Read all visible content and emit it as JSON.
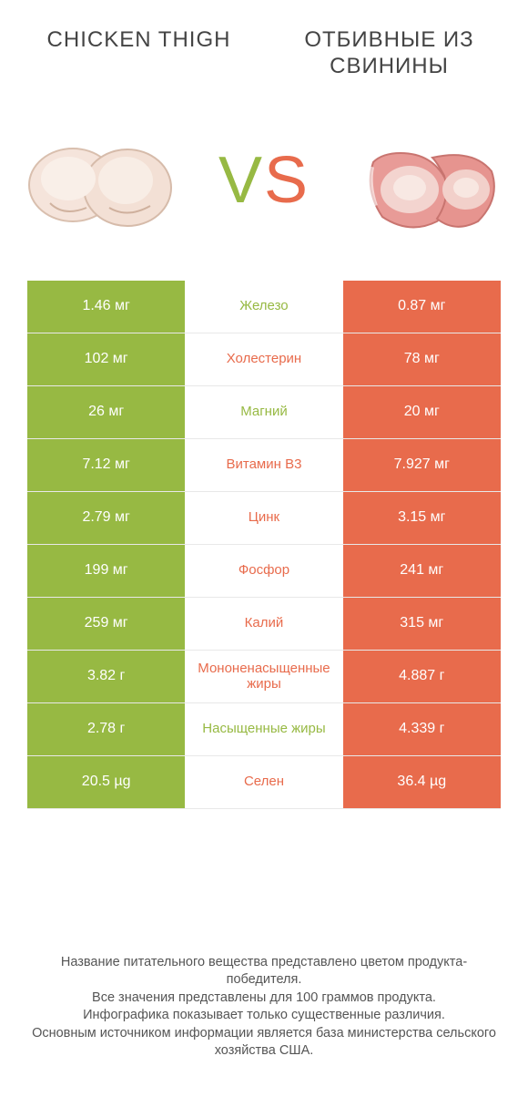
{
  "colors": {
    "green": "#97b943",
    "orange": "#e86b4c",
    "text": "#444444"
  },
  "header": {
    "left_title": "CHICKEN THIGH",
    "right_title": "ОТБИВНЫЕ ИЗ СВИНИНЫ"
  },
  "vs": {
    "v": "V",
    "s": "S"
  },
  "rows": [
    {
      "left": "1.46 мг",
      "label": "Железо",
      "right": "0.87 мг",
      "winner": "left"
    },
    {
      "left": "102 мг",
      "label": "Холестерин",
      "right": "78 мг",
      "winner": "right"
    },
    {
      "left": "26 мг",
      "label": "Магний",
      "right": "20 мг",
      "winner": "left"
    },
    {
      "left": "7.12 мг",
      "label": "Витамин B3",
      "right": "7.927 мг",
      "winner": "right"
    },
    {
      "left": "2.79 мг",
      "label": "Цинк",
      "right": "3.15 мг",
      "winner": "right"
    },
    {
      "left": "199 мг",
      "label": "Фосфор",
      "right": "241 мг",
      "winner": "right"
    },
    {
      "left": "259 мг",
      "label": "Калий",
      "right": "315 мг",
      "winner": "right"
    },
    {
      "left": "3.82 г",
      "label": "Мононенасыщенные жиры",
      "right": "4.887 г",
      "winner": "right"
    },
    {
      "left": "2.78 г",
      "label": "Насыщенные жиры",
      "right": "4.339 г",
      "winner": "left"
    },
    {
      "left": "20.5 µg",
      "label": "Селен",
      "right": "36.4 µg",
      "winner": "right"
    }
  ],
  "footer": {
    "line1": "Название питательного вещества представлено цветом продукта-победителя.",
    "line2": "Все значения представлены для 100 граммов продукта.",
    "line3": "Инфографика показывает только существенные различия.",
    "line4": "Основным источником информации является база министерства сельского хозяйства США."
  }
}
